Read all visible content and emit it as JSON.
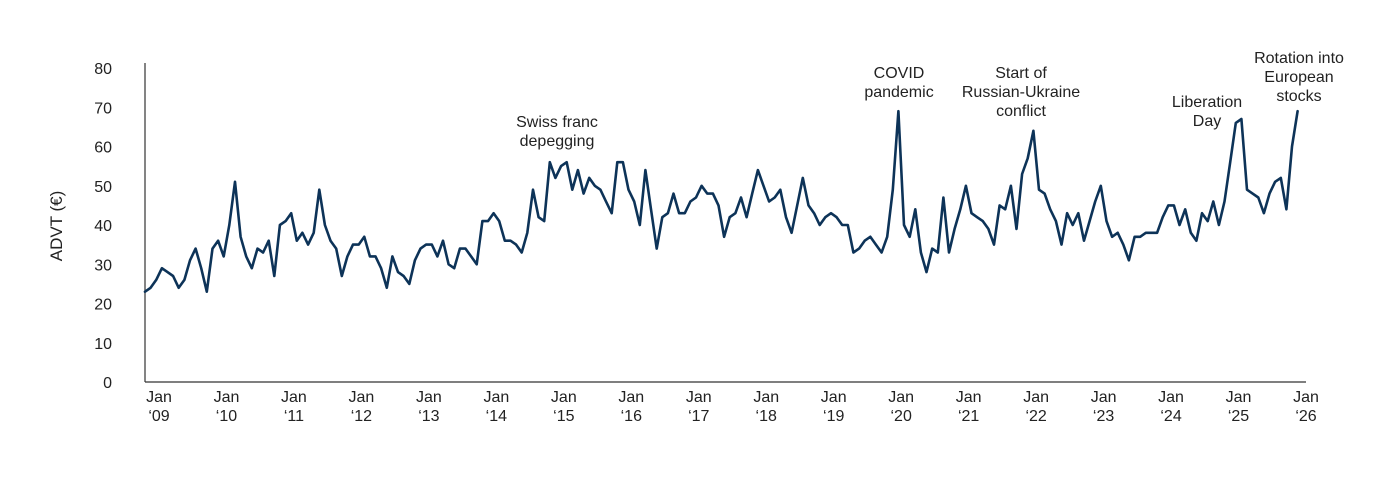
{
  "chart_data": {
    "type": "line",
    "title": "",
    "xlabel": "",
    "ylabel": "ADVT (€)",
    "ylim": [
      0,
      80
    ],
    "yticks": [
      0,
      10,
      20,
      30,
      40,
      50,
      60,
      70,
      80
    ],
    "grid": false,
    "legend": "none",
    "line_color": "#0d3358",
    "x_start": "Jan 2009",
    "frequency": "monthly",
    "xtick_labels": [
      {
        "line1": "Jan",
        "line2": "‘09",
        "month_index": 0
      },
      {
        "line1": "Jan",
        "line2": "‘10",
        "month_index": 12
      },
      {
        "line1": "Jan",
        "line2": "‘11",
        "month_index": 24
      },
      {
        "line1": "Jan",
        "line2": "‘12",
        "month_index": 36
      },
      {
        "line1": "Jan",
        "line2": "‘13",
        "month_index": 48
      },
      {
        "line1": "Jan",
        "line2": "‘14",
        "month_index": 60
      },
      {
        "line1": "Jan",
        "line2": "‘15",
        "month_index": 72
      },
      {
        "line1": "Jan",
        "line2": "‘16",
        "month_index": 84
      },
      {
        "line1": "Jan",
        "line2": "‘17",
        "month_index": 96
      },
      {
        "line1": "Jan",
        "line2": "‘18",
        "month_index": 108
      },
      {
        "line1": "Jan",
        "line2": "‘19",
        "month_index": 120
      },
      {
        "line1": "Jan",
        "line2": "‘20",
        "month_index": 132
      },
      {
        "line1": "Jan",
        "line2": "‘21",
        "month_index": 144
      },
      {
        "line1": "Jan",
        "line2": "‘22",
        "month_index": 156
      },
      {
        "line1": "Jan",
        "line2": "‘23",
        "month_index": 168
      },
      {
        "line1": "Jan",
        "line2": "‘24",
        "month_index": 180
      },
      {
        "line1": "Jan",
        "line2": "‘25",
        "month_index": 192
      },
      {
        "line1": "Jan",
        "line2": "‘26",
        "month_index": 204
      }
    ],
    "series": [
      {
        "name": "ADVT (€)",
        "values": [
          23,
          24,
          26,
          29,
          28,
          27,
          24,
          26,
          31,
          34,
          29,
          23,
          34,
          36,
          32,
          40,
          51,
          37,
          32,
          29,
          34,
          33,
          36,
          27,
          40,
          41,
          43,
          36,
          38,
          35,
          38,
          49,
          40,
          36,
          34,
          27,
          32,
          35,
          35,
          37,
          32,
          32,
          29,
          24,
          32,
          28,
          27,
          25,
          31,
          34,
          35,
          35,
          32,
          36,
          30,
          29,
          34,
          34,
          32,
          30,
          41,
          41,
          43,
          41,
          36,
          36,
          35,
          33,
          38,
          49,
          42,
          41,
          56,
          52,
          55,
          56,
          49,
          54,
          48,
          52,
          50,
          49,
          46,
          43,
          56,
          56,
          49,
          46,
          40,
          54,
          44,
          34,
          42,
          43,
          48,
          43,
          43,
          46,
          47,
          50,
          48,
          48,
          45,
          37,
          42,
          43,
          47,
          42,
          48,
          54,
          50,
          46,
          47,
          49,
          42,
          38,
          45,
          52,
          45,
          43,
          40,
          42,
          43,
          42,
          40,
          40,
          33,
          34,
          36,
          37,
          35,
          33,
          37,
          49,
          69,
          40,
          37,
          44,
          33,
          28,
          34,
          33,
          47,
          33,
          39,
          44,
          50,
          43,
          42,
          41,
          39,
          35,
          45,
          44,
          50,
          39,
          53,
          57,
          64,
          49,
          48,
          44,
          41,
          35,
          43,
          40,
          43,
          36,
          41,
          46,
          50,
          41,
          37,
          38,
          35,
          31,
          37,
          37,
          38,
          38,
          38,
          42,
          45,
          45,
          40,
          44,
          38,
          36,
          43,
          41,
          46,
          40,
          46,
          56,
          66,
          67,
          49,
          48,
          47,
          43,
          48,
          51,
          52,
          44,
          60,
          69
        ]
      }
    ],
    "annotations": [
      {
        "lines": [
          "Swiss franc",
          "depegging"
        ],
        "month_index": 74
      },
      {
        "lines": [
          "COVID",
          "pandemic"
        ],
        "month_index": 134
      },
      {
        "lines": [
          "Start of",
          "Russian-Ukraine",
          "conflict"
        ],
        "month_index": 158
      },
      {
        "lines": [
          "Liberation",
          "Day"
        ],
        "month_index": 195
      },
      {
        "lines": [
          "Rotation into",
          "European",
          "stocks"
        ],
        "month_index": 204
      }
    ]
  }
}
